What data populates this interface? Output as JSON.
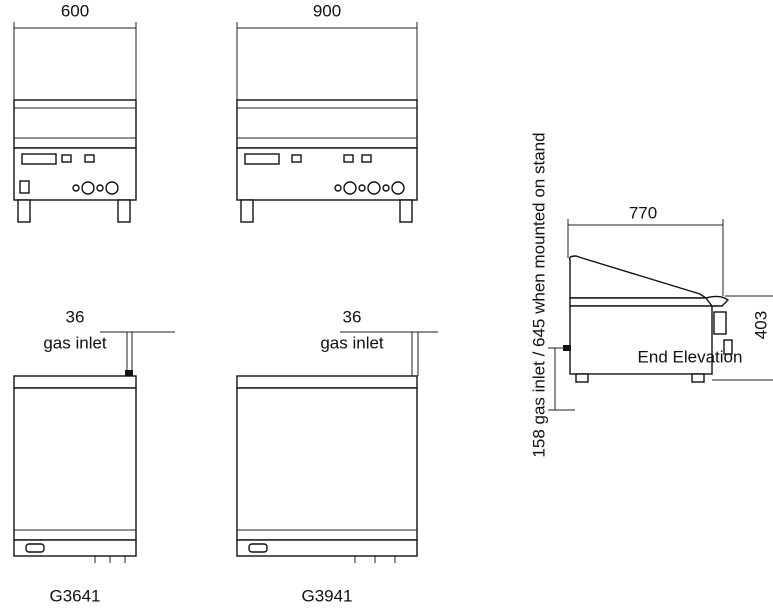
{
  "front_views": [
    {
      "width": 600
    },
    {
      "width": 900
    }
  ],
  "plan_views": [
    {
      "model": "G3641",
      "inlet_offset": 36,
      "inlet_label": "gas inlet"
    },
    {
      "model": "G3941",
      "inlet_offset": 36,
      "inlet_label": "gas inlet"
    }
  ],
  "end_elevation": {
    "depth": 770,
    "height": 403,
    "inlet_height": "158 gas inlet / 645 when mounted on stand",
    "label": "End Elevation"
  }
}
